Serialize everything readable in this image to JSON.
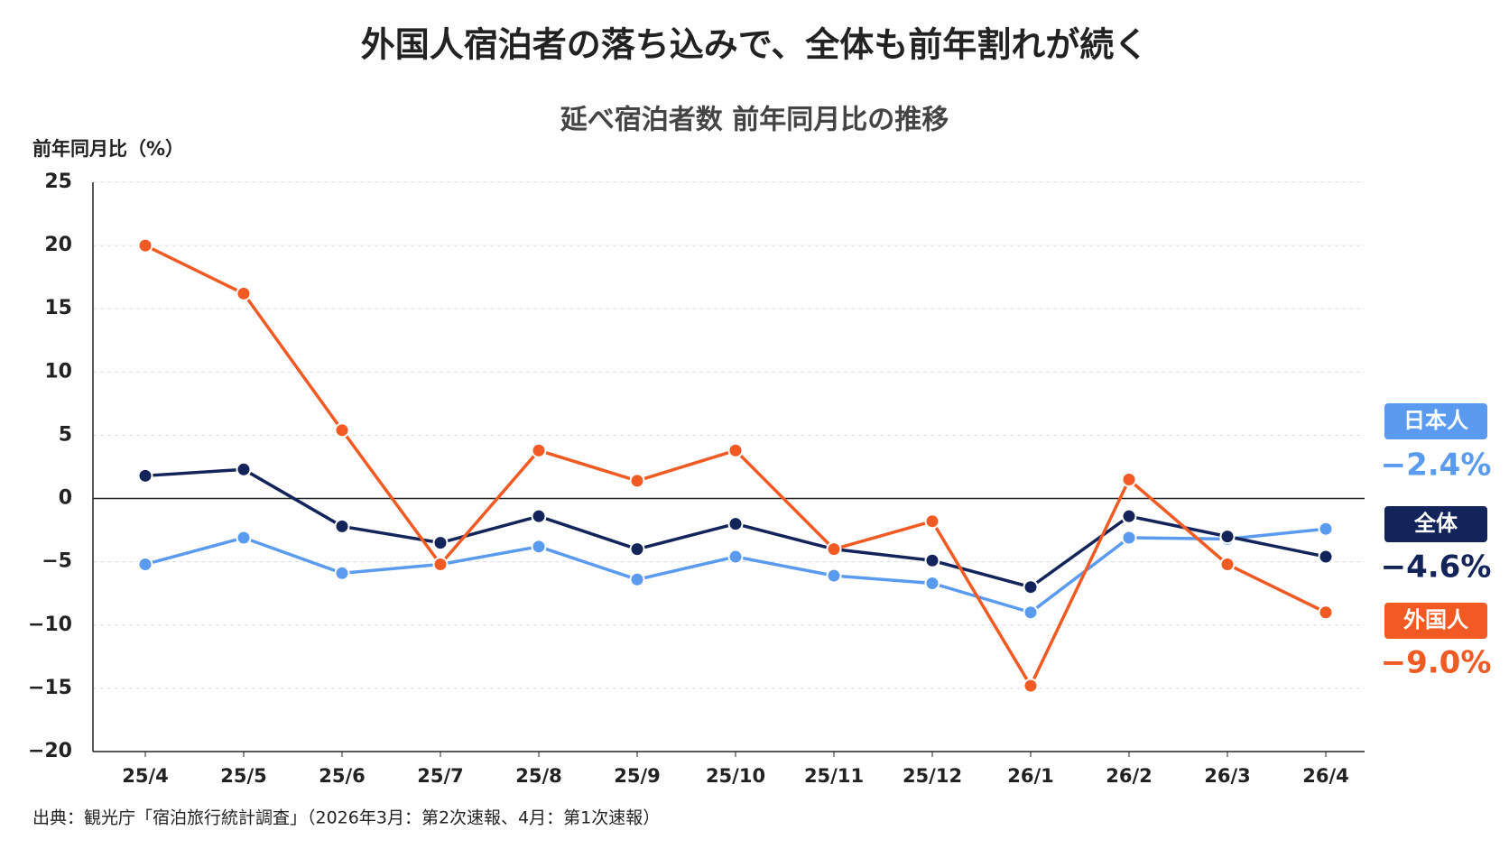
{
  "chart_data": {
    "type": "line",
    "title": "外国人宿泊者の落ち込みで、全体も前年割れが続く",
    "subtitle": "延べ宿泊者数 前年同月比の推移",
    "y_label": "前年同月比（%）",
    "source": "出典：観光庁「宿泊旅行統計調査」（2026年3月：第2次速報、4月：第1次速報）",
    "categories": [
      "25/4",
      "25/5",
      "25/6",
      "25/7",
      "25/8",
      "25/9",
      "25/10",
      "25/11",
      "25/12",
      "26/1",
      "26/2",
      "26/3",
      "26/4"
    ],
    "series": [
      {
        "name": "日本人",
        "color": "#5b9bef",
        "values": [
          -5.2,
          -3.1,
          -5.9,
          -5.2,
          -3.8,
          -6.4,
          -4.6,
          -6.1,
          -6.7,
          -9.0,
          -3.1,
          -3.2,
          -2.4
        ],
        "value_labels": [
          null,
          null,
          null,
          null,
          null,
          null,
          null,
          null,
          null,
          null,
          null,
          null,
          "−2.4%"
        ]
      },
      {
        "name": "全体",
        "color": "#13245a",
        "values": [
          1.8,
          2.3,
          -2.2,
          -3.5,
          -1.4,
          -4.0,
          -2.0,
          -4.0,
          -4.9,
          -7.0,
          -1.4,
          -3.0,
          -4.6
        ],
        "value_labels": [
          null,
          null,
          null,
          null,
          null,
          null,
          null,
          null,
          null,
          null,
          null,
          null,
          "−4.6%"
        ]
      },
      {
        "name": "外国人",
        "color": "#f15a22",
        "values": [
          20.0,
          16.2,
          5.4,
          -5.2,
          3.8,
          1.4,
          3.8,
          -4.0,
          -1.8,
          -14.8,
          1.5,
          -5.2,
          -9.0
        ],
        "value_labels": [
          null,
          null,
          null,
          null,
          null,
          null,
          null,
          null,
          null,
          null,
          null,
          null,
          "−9.0%"
        ]
      }
    ],
    "ylim": [
      -20,
      25
    ],
    "yticks": [
      {
        "value": -20,
        "label": "−20"
      },
      {
        "value": -15,
        "label": "−15"
      },
      {
        "value": -10,
        "label": "−10"
      },
      {
        "value": -5,
        "label": "−5"
      },
      0,
      5,
      10,
      15,
      20,
      25
    ],
    "grid": true
  }
}
